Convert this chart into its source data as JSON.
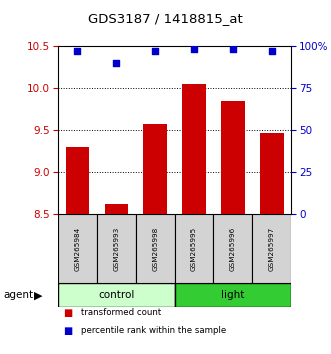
{
  "title": "GDS3187 / 1418815_at",
  "samples": [
    "GSM265984",
    "GSM265993",
    "GSM265998",
    "GSM265995",
    "GSM265996",
    "GSM265997"
  ],
  "bar_values": [
    9.3,
    8.62,
    9.57,
    10.05,
    9.85,
    9.47
  ],
  "bar_color": "#cc0000",
  "dot_values": [
    97,
    90,
    97,
    98,
    98,
    97
  ],
  "dot_color": "#0000cc",
  "ylim_left": [
    8.5,
    10.5
  ],
  "ylim_right": [
    0,
    100
  ],
  "yticks_left": [
    8.5,
    9.0,
    9.5,
    10.0,
    10.5
  ],
  "yticks_right": [
    0,
    25,
    50,
    75,
    100
  ],
  "ytick_labels_right": [
    "0",
    "25",
    "50",
    "75",
    "100%"
  ],
  "groups": [
    {
      "label": "control",
      "indices": [
        0,
        1,
        2
      ],
      "color": "#ccffcc"
    },
    {
      "label": "light",
      "indices": [
        3,
        4,
        5
      ],
      "color": "#33cc33"
    }
  ],
  "group_row_label": "agent",
  "legend_items": [
    {
      "label": "transformed count",
      "color": "#cc0000"
    },
    {
      "label": "percentile rank within the sample",
      "color": "#0000cc"
    }
  ],
  "bar_bottom": 8.5,
  "bar_width": 0.6,
  "tick_label_color_left": "#cc0000",
  "tick_label_color_right": "#0000cc",
  "background_color": "#ffffff",
  "plot_bg_color": "#ffffff",
  "sample_box_color": "#d3d3d3"
}
